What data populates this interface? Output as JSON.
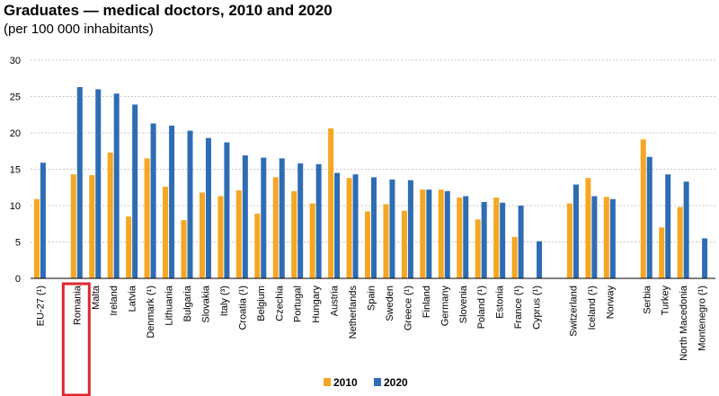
{
  "chart_data": {
    "type": "bar",
    "title": "Graduates — medical doctors, 2010 and 2020",
    "subtitle": "(per 100 000 inhabitants)",
    "xlabel": "",
    "ylabel": "",
    "ylim": [
      0,
      30
    ],
    "yticks": [
      0,
      5,
      10,
      15,
      20,
      25,
      30
    ],
    "grid": "horizontal-dashed",
    "legend_position": "bottom",
    "highlighted_category": "Romania",
    "colors": {
      "2010": "#f5a623",
      "2020": "#2e6db4",
      "highlight_box": "#e0262d",
      "grid": "#c8c8c8"
    },
    "groups": [
      [
        "EU-27 (¹)"
      ],
      [
        "Romania",
        "Malta",
        "Ireland",
        "Latvia",
        "Denmark (¹)",
        "Lithuania",
        "Bulgaria",
        "Slovakia",
        "Italy (³)",
        "Croatia (¹)",
        "Belgium",
        "Czechia",
        "Portugal",
        "Hungary",
        "Austria",
        "Netherlands",
        "Spain",
        "Sweden",
        "Greece (¹)",
        "Finland",
        "Germany",
        "Slovenia",
        "Poland (¹)",
        "Estonia",
        "France (¹)",
        "Cyprus (¹)"
      ],
      [
        "Switzerland",
        "Iceland (¹)",
        "Norway"
      ],
      [
        "Serbia",
        "Turkey",
        "North Macedonia",
        "Montenegro (¹)"
      ]
    ],
    "series": [
      {
        "name": "2010",
        "values": [
          10.9,
          14.3,
          14.2,
          17.3,
          8.5,
          16.5,
          12.6,
          8.0,
          11.8,
          11.3,
          12.1,
          8.9,
          13.9,
          12.0,
          10.3,
          20.6,
          13.8,
          9.2,
          10.2,
          9.3,
          12.2,
          12.2,
          11.1,
          8.1,
          11.1,
          5.7,
          null,
          10.3,
          13.8,
          11.2,
          19.1,
          7.0,
          9.8,
          null
        ]
      },
      {
        "name": "2020",
        "values": [
          15.9,
          26.3,
          26.0,
          25.4,
          23.9,
          21.3,
          21.0,
          20.3,
          19.3,
          18.7,
          16.9,
          16.6,
          16.5,
          15.8,
          15.7,
          14.5,
          14.3,
          13.9,
          13.6,
          13.5,
          12.2,
          12.0,
          11.3,
          10.5,
          10.4,
          10.0,
          5.1,
          12.9,
          11.3,
          10.9,
          16.7,
          14.3,
          13.3,
          5.5
        ]
      }
    ]
  }
}
